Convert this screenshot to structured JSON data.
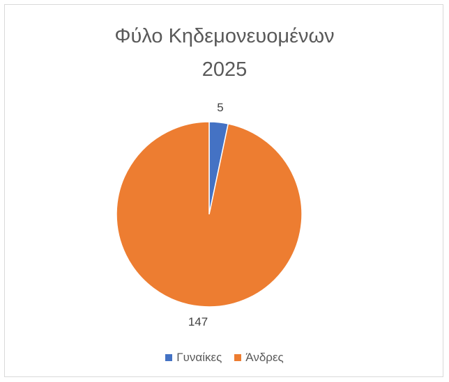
{
  "chart_data": {
    "type": "pie",
    "title_line1": "Φύλο Κηδεμονευομένων",
    "title_line2": "2025",
    "categories": [
      "Γυναίκες",
      "Άνδρες"
    ],
    "values": [
      5,
      147
    ],
    "data_labels": [
      "5",
      "147"
    ],
    "colors": [
      "#4472c4",
      "#ed7d31"
    ],
    "legend_position": "bottom"
  }
}
